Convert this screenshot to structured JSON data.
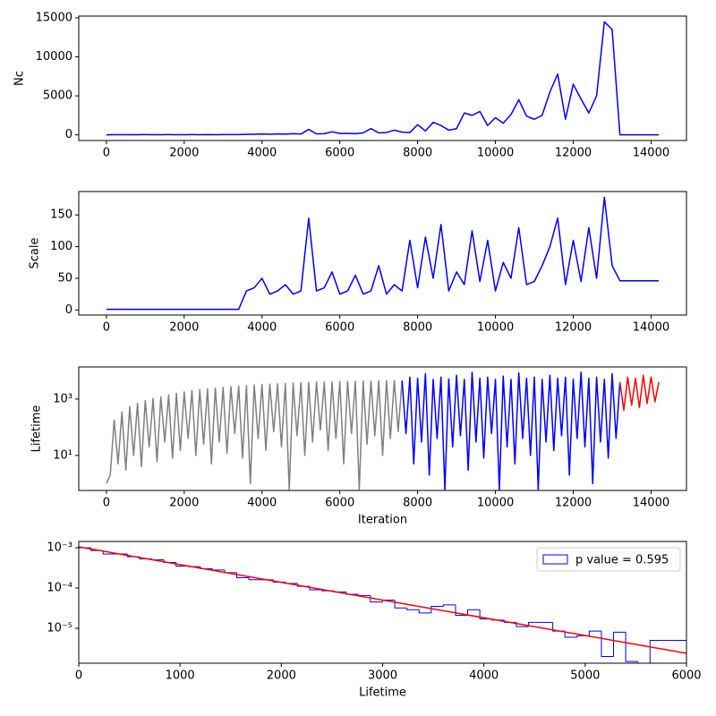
{
  "chart_data": [
    {
      "type": "line",
      "ylabel": "Nc",
      "xlim": [
        -710,
        14910
      ],
      "ylim": [
        -725,
        15225
      ],
      "xticks": [
        0,
        2000,
        4000,
        6000,
        8000,
        10000,
        12000,
        14000
      ],
      "yticks": [
        0,
        5000,
        10000,
        15000
      ],
      "series": [
        {
          "color": "#0000ff",
          "x": [
            0,
            200,
            400,
            600,
            800,
            1000,
            1200,
            1400,
            1600,
            1800,
            2000,
            2200,
            2400,
            2600,
            2800,
            3000,
            3200,
            3400,
            3600,
            3800,
            4000,
            4200,
            4400,
            4600,
            4800,
            5000,
            5200,
            5400,
            5600,
            5800,
            6000,
            6200,
            6400,
            6600,
            6800,
            7000,
            7200,
            7400,
            7600,
            7800,
            8000,
            8200,
            8400,
            8600,
            8800,
            9000,
            9200,
            9400,
            9600,
            9800,
            10000,
            10200,
            10400,
            10600,
            10800,
            11000,
            11200,
            11400,
            11600,
            11800,
            12000,
            12200,
            12400,
            12600,
            12800,
            13000,
            13200,
            13400,
            13600,
            13800,
            14000,
            14200
          ],
          "values": [
            0,
            20,
            15,
            25,
            20,
            30,
            20,
            25,
            30,
            20,
            25,
            30,
            20,
            35,
            25,
            30,
            40,
            30,
            60,
            80,
            100,
            80,
            120,
            90,
            150,
            100,
            700,
            120,
            150,
            400,
            180,
            200,
            150,
            250,
            800,
            250,
            300,
            600,
            350,
            300,
            1300,
            500,
            1600,
            1200,
            600,
            800,
            2800,
            2500,
            3000,
            1200,
            2200,
            1500,
            2600,
            4500,
            2400,
            2000,
            2500,
            5500,
            7800,
            2000,
            6500,
            4600,
            2800,
            5000,
            14500,
            13500,
            0,
            0,
            0,
            0,
            0,
            0
          ]
        }
      ]
    },
    {
      "type": "line",
      "ylabel": "Scale",
      "xlim": [
        -710,
        14910
      ],
      "ylim": [
        -8,
        187
      ],
      "xticks": [
        0,
        2000,
        4000,
        6000,
        8000,
        10000,
        12000,
        14000
      ],
      "yticks": [
        0,
        50,
        100,
        150
      ],
      "series": [
        {
          "color": "#0000ff",
          "x": [
            0,
            200,
            400,
            600,
            800,
            1000,
            1200,
            1400,
            1600,
            1800,
            2000,
            2200,
            2400,
            2600,
            2800,
            3000,
            3200,
            3400,
            3600,
            3800,
            4000,
            4200,
            4400,
            4600,
            4800,
            5000,
            5200,
            5400,
            5600,
            5800,
            6000,
            6200,
            6400,
            6600,
            6800,
            7000,
            7200,
            7400,
            7600,
            7800,
            8000,
            8200,
            8400,
            8600,
            8800,
            9000,
            9200,
            9400,
            9600,
            9800,
            10000,
            10200,
            10400,
            10600,
            10800,
            11000,
            11200,
            11400,
            11600,
            11800,
            12000,
            12200,
            12400,
            12600,
            12800,
            13000,
            13200,
            13400,
            13600,
            13800,
            14000,
            14200
          ],
          "values": [
            1,
            1,
            1,
            1,
            1,
            1,
            1,
            1,
            1,
            1,
            1,
            1,
            1,
            1,
            1,
            1,
            1,
            1,
            30,
            35,
            50,
            25,
            30,
            40,
            25,
            30,
            145,
            30,
            35,
            60,
            25,
            30,
            55,
            25,
            30,
            70,
            25,
            40,
            30,
            110,
            35,
            115,
            50,
            135,
            30,
            60,
            40,
            125,
            45,
            110,
            30,
            75,
            50,
            130,
            40,
            45,
            70,
            100,
            145,
            40,
            110,
            45,
            130,
            50,
            178,
            70,
            46,
            46,
            46,
            46,
            46,
            46
          ]
        }
      ]
    },
    {
      "type": "line",
      "ylabel": "Lifetime",
      "xlabel": "Iteration",
      "ylog": true,
      "xlim": [
        -710,
        14910
      ],
      "ylim": [
        0.57,
        13800
      ],
      "xticks": [
        0,
        2000,
        4000,
        6000,
        8000,
        10000,
        12000,
        14000
      ],
      "yticks": [
        {
          "value": 10,
          "label": "10¹"
        },
        {
          "value": 1000,
          "label": "10³"
        }
      ],
      "series": [
        {
          "color": "#808080",
          "x": [
            0,
            100,
            200,
            300,
            400,
            500,
            600,
            700,
            800,
            900,
            1000,
            1100,
            1200,
            1300,
            1400,
            1500,
            1600,
            1700,
            1800,
            1900,
            2000,
            2100,
            2200,
            2300,
            2400,
            2500,
            2600,
            2700,
            2800,
            2900,
            3000,
            3100,
            3200,
            3300,
            3400,
            3500,
            3600,
            3700,
            3800,
            3900,
            4000,
            4100,
            4200,
            4300,
            4400,
            4500,
            4600,
            4700,
            4800,
            4900,
            5000,
            5100,
            5200,
            5300,
            5400,
            5500,
            5600,
            5700,
            5800,
            5900,
            6000,
            6100,
            6200,
            6300,
            6400,
            6500,
            6600,
            6700,
            6800,
            6900,
            7000,
            7100,
            7200,
            7300,
            7400,
            7500,
            7600
          ],
          "values": [
            1,
            2,
            180,
            5,
            350,
            3,
            540,
            10,
            700,
            4,
            880,
            20,
            1050,
            6,
            1200,
            30,
            1400,
            8,
            1600,
            15,
            1800,
            40,
            2000,
            10,
            2150,
            25,
            2300,
            5,
            2450,
            30,
            2600,
            12,
            2750,
            60,
            2900,
            8,
            3000,
            1,
            3150,
            40,
            3300,
            15,
            3400,
            70,
            3500,
            20,
            3600,
            0.6,
            3700,
            50,
            3800,
            10,
            3900,
            30,
            4000,
            80,
            4050,
            15,
            4100,
            40,
            4200,
            5,
            4250,
            60,
            4300,
            0.6,
            4350,
            25,
            4400,
            50,
            4450,
            10,
            4500,
            40,
            4550,
            70,
            4600
          ]
        },
        {
          "color": "#0000ff",
          "x": [
            7600,
            7700,
            7800,
            7900,
            8000,
            8100,
            8200,
            8300,
            8400,
            8500,
            8600,
            8700,
            8800,
            8900,
            9000,
            9100,
            9200,
            9300,
            9400,
            9500,
            9600,
            9700,
            9800,
            9900,
            10000,
            10100,
            10200,
            10300,
            10400,
            10500,
            10600,
            10700,
            10800,
            10900,
            11000,
            11100,
            11200,
            11300,
            11400,
            11500,
            11600,
            11700,
            11800,
            11900,
            12000,
            12100,
            12200,
            12300,
            12400,
            12500,
            12600,
            12700,
            12800,
            12900,
            13000,
            13100,
            13200
          ],
          "values": [
            4500,
            60,
            6000,
            5,
            5500,
            30,
            8000,
            2,
            5000,
            40,
            6000,
            0.6,
            5200,
            20,
            7000,
            50,
            5000,
            3,
            9000,
            30,
            5500,
            8,
            6000,
            60,
            5000,
            0.6,
            6500,
            20,
            5000,
            5,
            8500,
            40,
            5500,
            10,
            6000,
            0.6,
            5000,
            30,
            7000,
            15,
            5500,
            50,
            6000,
            2,
            5000,
            40,
            9000,
            20,
            5500,
            1,
            6000,
            30,
            5000,
            8,
            8000,
            40,
            4000
          ]
        },
        {
          "color": "#ff0000",
          "x": [
            13200,
            13300,
            13400,
            13500,
            13600,
            13700,
            13800,
            13900,
            14000,
            14100,
            14200
          ],
          "values": [
            4000,
            400,
            6000,
            600,
            5500,
            500,
            7000,
            700,
            6000,
            800,
            4000
          ]
        }
      ]
    },
    {
      "type": "histogram",
      "xlabel": "Lifetime",
      "ylog": true,
      "xlim": [
        0,
        6000
      ],
      "ylim": [
        1.36e-06,
        0.00143
      ],
      "xticks": [
        0,
        1000,
        2000,
        3000,
        4000,
        5000,
        6000
      ],
      "yticks": [
        {
          "value": 0.001,
          "label": "10⁻³"
        },
        {
          "value": 0.0001,
          "label": "10⁻⁴"
        },
        {
          "value": 1e-05,
          "label": "10⁻⁵"
        }
      ],
      "legend": "upper right",
      "bins": [
        0,
        120,
        240,
        360,
        480,
        600,
        720,
        840,
        960,
        1080,
        1200,
        1320,
        1440,
        1560,
        1680,
        1800,
        1920,
        2040,
        2160,
        2280,
        2400,
        2520,
        2640,
        2760,
        2880,
        3000,
        3120,
        3240,
        3360,
        3480,
        3600,
        3720,
        3840,
        3960,
        4080,
        4200,
        4320,
        4440,
        4560,
        4680,
        4800,
        4920,
        5040,
        5160,
        5280,
        5400,
        5520,
        5640,
        5760,
        5880,
        6000
      ],
      "series": [
        {
          "name": "p value = 0.595",
          "color": "#0000ff",
          "values": [
            0.001,
            0.00085,
            0.0007,
            0.0007,
            0.0006,
            0.00053,
            0.0005,
            0.00043,
            0.00035,
            0.00034,
            0.0003,
            0.00028,
            0.00024,
            0.00018,
            0.00016,
            0.00016,
            0.00014,
            0.00013,
            0.00011,
            9e-05,
            8.5e-05,
            8e-05,
            7e-05,
            6.5e-05,
            4.5e-05,
            5e-05,
            3.2e-05,
            2.9e-05,
            2.4e-05,
            3.5e-05,
            3.8e-05,
            2.1e-05,
            2.9e-05,
            1.7e-05,
            1.6e-05,
            1.4e-05,
            1.1e-05,
            1.4e-05,
            1.4e-05,
            8.5e-06,
            6e-06,
            6.5e-06,
            8.5e-06,
            2e-06,
            8e-06,
            1.5e-06,
            0,
            5e-06,
            5e-06,
            5e-06
          ]
        }
      ],
      "fit": {
        "color": "#ff0000",
        "x": [
          0,
          6000
        ],
        "values": [
          0.00105,
          2.4e-06
        ]
      }
    }
  ]
}
